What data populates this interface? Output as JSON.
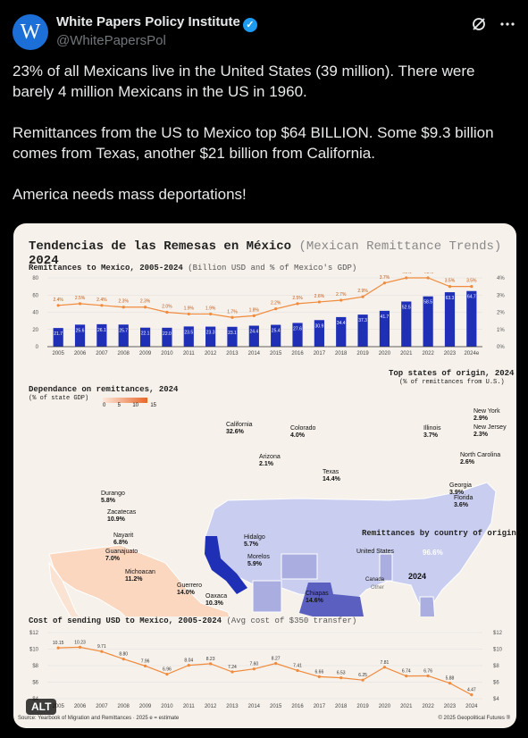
{
  "post": {
    "avatar_letter": "W",
    "author_name": "White Papers Policy Institute",
    "verified_glyph": "✓",
    "handle": "@WhitePapersPol",
    "icons": [
      "grok-icon",
      "more-icon"
    ],
    "paragraphs": [
      "23% of all Mexicans live in the United States (39 million). There were barely 4 million Mexicans in the US in 1960.",
      "Remittances from the US to Mexico top $64 BILLION. Some $9.3 billion comes from Texas, another $21 billion from California.",
      "America needs mass deportations!"
    ],
    "alt_badge": "ALT"
  },
  "infographic": {
    "title_main": "Tendencias de las Remesas en México",
    "title_paren": "(Mexican Remittance Trends)",
    "title_year": "2024",
    "source": "Source: Yearbook of Migration and Remittances · 2025    e = estimate",
    "copyright": "© 2025 Geopolitical Futures ®",
    "colors": {
      "bar": "#1f2fb6",
      "line": "#f08a3c",
      "map_dark": "#e8672a",
      "us_light": "#c9cdef"
    },
    "map_title": "Dependance on remittances, 2024",
    "map_subtitle": "(% of state GDP)",
    "map_legend": [
      "0",
      "5",
      "10",
      "15"
    ],
    "us_title": "Top states of origin, 2024",
    "us_subtitle": "(% of remittances from U.S.)",
    "mx_states": [
      {
        "name": "Durango",
        "value": "5.8%"
      },
      {
        "name": "Zacatecas",
        "value": "10.9%"
      },
      {
        "name": "Nayarit",
        "value": "6.8%"
      },
      {
        "name": "Guanajuato",
        "value": "7.0%"
      },
      {
        "name": "Michoacan",
        "value": "11.2%"
      },
      {
        "name": "Guerrero",
        "value": "14.0%"
      },
      {
        "name": "Oaxaca",
        "value": "10.3%"
      },
      {
        "name": "Chiapas",
        "value": "14.6%"
      },
      {
        "name": "Hidalgo",
        "value": "5.7%"
      },
      {
        "name": "Morelos",
        "value": "5.9%"
      }
    ],
    "us_states": [
      {
        "name": "California",
        "value": "32.6%"
      },
      {
        "name": "Colorado",
        "value": "4.0%"
      },
      {
        "name": "Arizona",
        "value": "2.1%"
      },
      {
        "name": "Texas",
        "value": "14.4%"
      },
      {
        "name": "Illinois",
        "value": "3.7%"
      },
      {
        "name": "New York",
        "value": "2.9%"
      },
      {
        "name": "New Jersey",
        "value": "2.3%"
      },
      {
        "name": "North Carolina",
        "value": "2.6%"
      },
      {
        "name": "Georgia",
        "value": "3.9%"
      },
      {
        "name": "Florida",
        "value": "3.6%"
      }
    ]
  },
  "chart_data": [
    {
      "type": "bar",
      "title": "Remittances to Mexico, 2005-2024",
      "subtitle": "(Billion USD and % of Mexico's GDP)",
      "categories": [
        "2005",
        "2006",
        "2007",
        "2008",
        "2009",
        "2010",
        "2011",
        "2012",
        "2013",
        "2014",
        "2015",
        "2016",
        "2017",
        "2018",
        "2019",
        "2020",
        "2021",
        "2022",
        "2023",
        "2024e"
      ],
      "series": [
        {
          "values": [
            21.7,
            25.6,
            26.1,
            25.7,
            22.1,
            22.0,
            23.5,
            23.3,
            23.1,
            24.4,
            25.4,
            27.6,
            30.9,
            34.4,
            37.3,
            41.7,
            52.5,
            58.5,
            63.3,
            64.7
          ],
          "labels": [
            "21.7",
            "25.6",
            "26.1",
            "25.7",
            "22.1",
            "22.0",
            "23.5",
            "23.3",
            "23.1",
            "24.4",
            "25.4",
            "27.6",
            "30.9",
            "34.4",
            "37.3",
            "41.7",
            "52.5",
            "58.5",
            "63.3",
            "64.7"
          ]
        },
        {
          "values": [
            2.4,
            2.5,
            2.4,
            2.3,
            2.3,
            2.0,
            1.9,
            1.9,
            1.7,
            1.8,
            2.2,
            2.5,
            2.6,
            2.7,
            2.9,
            3.7,
            4.0,
            4.0,
            3.5,
            3.5
          ],
          "labels": [
            "2.4%",
            "2.5%",
            "2.4%",
            "2.3%",
            "2.3%",
            "2.0%",
            "1.9%",
            "1.9%",
            "1.7%",
            "1.8%",
            "2.2%",
            "2.5%",
            "2.6%",
            "2.7%",
            "2.9%",
            "3.7%",
            "4.0%",
            "4.0%",
            "3.5%",
            "3.5%"
          ]
        }
      ],
      "y_ticks_left": [
        "0",
        "20",
        "40",
        "60",
        "80"
      ],
      "y_ticks_right": [
        "0%",
        "1%",
        "2%",
        "3%",
        "4%"
      ],
      "ylim": [
        0,
        80
      ],
      "ylim_right": [
        0,
        4
      ],
      "grid": true
    },
    {
      "type": "pie",
      "title": "Remittances by country of origin",
      "center_label": "2024",
      "slices": [
        {
          "name": "United States",
          "value": 96.6,
          "label": "96.6%"
        },
        {
          "name": "Canada",
          "value": 1.8,
          "label": ""
        },
        {
          "name": "Other",
          "value": 1.6,
          "label": ""
        }
      ]
    },
    {
      "type": "line",
      "title": "Cost of sending USD to Mexico, 2005-2024",
      "subtitle": "(Avg cost of $350 transfer)",
      "x": [
        "2005",
        "2006",
        "2007",
        "2008",
        "2009",
        "2010",
        "2011",
        "2012",
        "2013",
        "2014",
        "2015",
        "2016",
        "2017",
        "2018",
        "2019",
        "2020",
        "2021",
        "2022",
        "2023",
        "2024"
      ],
      "series": [
        {
          "values": [
            10.15,
            10.23,
            9.71,
            8.8,
            7.96,
            6.96,
            8.04,
            8.23,
            7.24,
            7.6,
            8.27,
            7.41,
            6.66,
            6.53,
            6.25,
            7.81,
            6.74,
            6.76,
            5.88,
            4.47
          ],
          "labels": [
            "10.15",
            "10.23",
            "9.71",
            "8.80",
            "7.96",
            "6.96",
            "8.04",
            "8.23",
            "7.24",
            "7.60",
            "8.27",
            "7.41",
            "6.66",
            "6.53",
            "6.25",
            "7.81",
            "6.74",
            "6.76",
            "5.88",
            "4.47"
          ]
        }
      ],
      "y_ticks": [
        "$4",
        "$6",
        "$8",
        "$10",
        "$12"
      ],
      "ylim": [
        4,
        12
      ],
      "grid": true
    }
  ]
}
